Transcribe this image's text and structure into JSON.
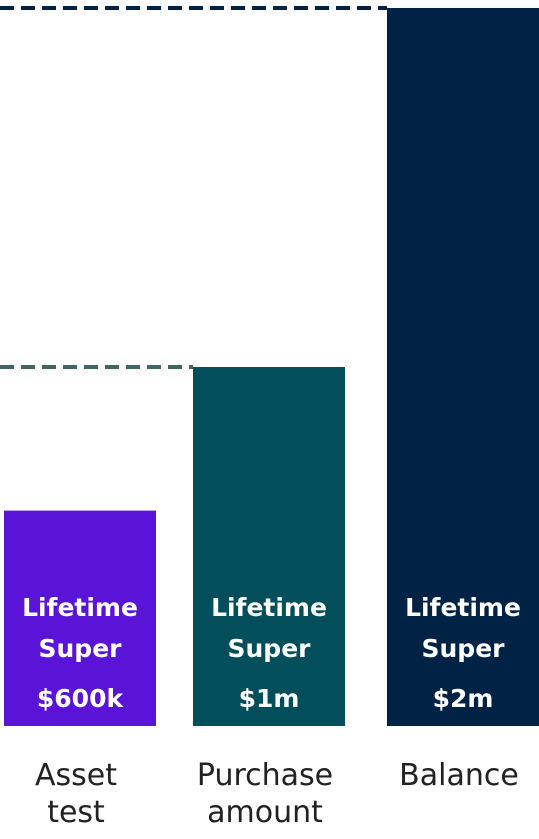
{
  "chart_data": {
    "type": "bar",
    "categories": [
      [
        "Asset",
        "test"
      ],
      [
        "Purchase",
        "amount"
      ],
      [
        "Balance"
      ]
    ],
    "values": [
      600,
      1000,
      2000
    ],
    "unit": "$k",
    "bar_labels": [
      [
        "Lifetime",
        "Super",
        "$600k"
      ],
      [
        "Lifetime",
        "Super",
        "$1m"
      ],
      [
        "Lifetime",
        "Super",
        "$2m"
      ]
    ],
    "bar_colors": [
      "#5a14d8",
      "#024e5a",
      "#002245"
    ],
    "reference_lines": [
      {
        "value": 2000,
        "color": "#002245",
        "style": "dashed"
      },
      {
        "value": 1000,
        "color": "#3f6662",
        "style": "dashed"
      }
    ],
    "ylim": [
      0,
      2000
    ],
    "grid": false,
    "legend": "none",
    "title": "",
    "xlabel": "",
    "ylabel": ""
  }
}
